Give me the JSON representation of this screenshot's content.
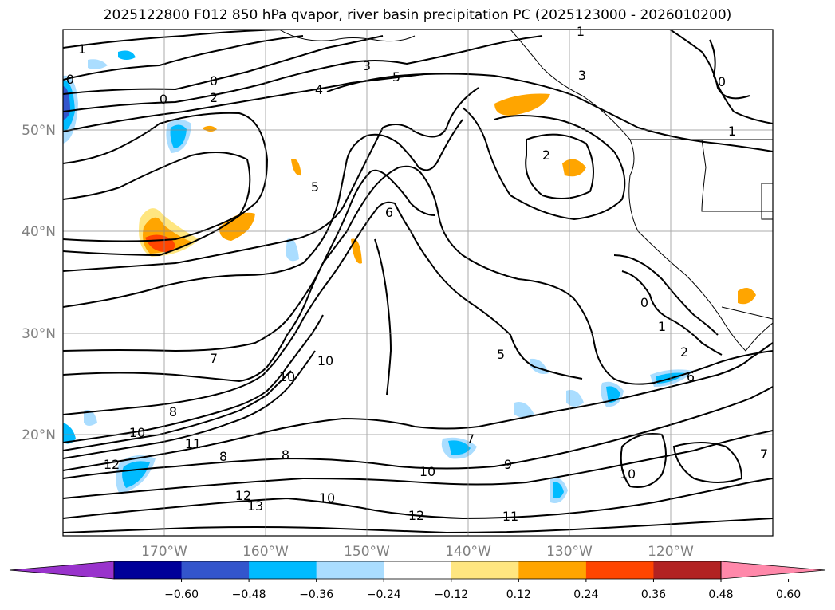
{
  "title": "2025122800 F012 850 hPa qvapor, river basin precipitation PC (2025123000 - 2026010200)",
  "lat_labels": [
    "50°N",
    "40°N",
    "30°N",
    "20°N"
  ],
  "lon_labels": [
    "170°W",
    "160°W",
    "150°W",
    "140°W",
    "130°W",
    "120°W"
  ],
  "colorbar": {
    "ticks": [
      "−0.60",
      "−0.48",
      "−0.36",
      "−0.24",
      "−0.12",
      "0.12",
      "0.24",
      "0.36",
      "0.48",
      "0.60"
    ],
    "colors": [
      "#9933cc",
      "#000099",
      "#3355cc",
      "#00bbff",
      "#aaddff",
      "#ffffff",
      "#ffe680",
      "#ffa500",
      "#ff4500",
      "#b22222",
      "#ff88aa"
    ]
  },
  "contour_labels": [
    "1",
    "0",
    "0",
    "0",
    "2",
    "3",
    "4",
    "5",
    "3",
    "1",
    "0",
    "1",
    "2",
    "5",
    "6",
    "5",
    "7",
    "8",
    "10",
    "10",
    "10",
    "11",
    "12",
    "12",
    "13",
    "8",
    "8",
    "9",
    "10",
    "10",
    "11",
    "12",
    "7",
    "0",
    "1",
    "2",
    "6",
    "7",
    "10"
  ],
  "chart_data": {
    "type": "map",
    "field": "850 hPa qvapor",
    "shaded_field": "river basin precipitation PC",
    "lon_range": [
      -180,
      -110
    ],
    "lat_range": [
      10,
      60
    ],
    "grid": true
  }
}
